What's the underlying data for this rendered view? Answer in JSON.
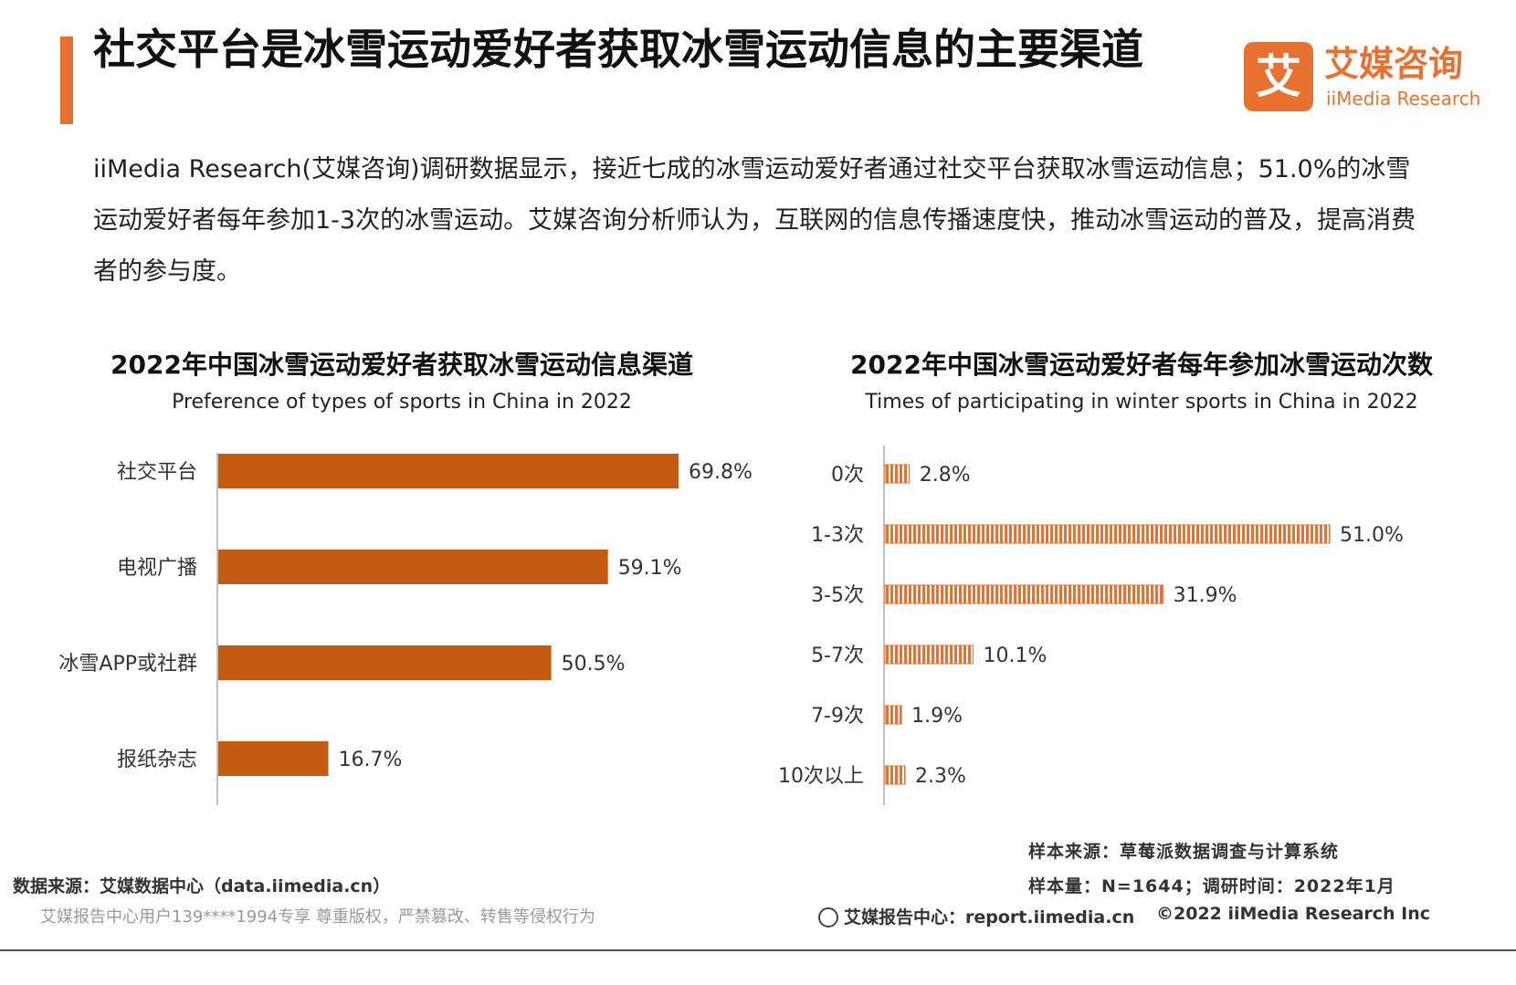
{
  "header": {
    "title": "社交平台是冰雪运动爱好者获取冰雪运动信息的主要渠道",
    "summary": "iiMedia Research(艾媒咨询)调研数据显示，接近七成的冰雪运动爱好者通过社交平台获取冰雪运动信息；51.0%的冰雪运动爱好者每年参加1-3次的冰雪运动。艾媒咨询分析师认为，互联网的信息传播速度快，推动冰雪运动的普及，提高消费者的参与度。"
  },
  "logo": {
    "mark": "艾",
    "name_cn": "艾媒咨询",
    "name_en": "iiMedia Research"
  },
  "colors": {
    "accent": "#e8712f",
    "bar_left": "#c55a11",
    "bar_right": "#e8712f",
    "axis": "#bfbfbf"
  },
  "chart_data": [
    {
      "type": "bar",
      "orientation": "horizontal",
      "title": "2022年中国冰雪运动爱好者获取冰雪运动信息渠道",
      "subtitle": "Preference of types of sports in China in 2022",
      "categories": [
        "社交平台",
        "电视广播",
        "冰雪APP或社群",
        "报纸杂志"
      ],
      "values": [
        69.8,
        59.1,
        50.5,
        16.7
      ],
      "value_labels": [
        "69.8%",
        "59.1%",
        "50.5%",
        "16.7%"
      ],
      "unit": "%",
      "xlim": [
        0,
        100
      ]
    },
    {
      "type": "bar",
      "orientation": "horizontal",
      "title": "2022年中国冰雪运动爱好者每年参加冰雪运动次数",
      "subtitle": "Times of participating in winter sports in China in 2022",
      "categories": [
        "0次",
        "1-3次",
        "3-5次",
        "5-7次",
        "7-9次",
        "10次以上"
      ],
      "values": [
        2.8,
        51.0,
        31.9,
        10.1,
        1.9,
        2.3
      ],
      "value_labels": [
        "2.8%",
        "51.0%",
        "31.9%",
        "10.1%",
        "1.9%",
        "2.3%"
      ],
      "unit": "%",
      "xlim": [
        0,
        100
      ],
      "pattern": "vertical-stripes"
    }
  ],
  "footer": {
    "sample_source": "样本来源：草莓派数据调查与计算系统",
    "sample_size": "样本量：N=1644；调研时间：2022年1月",
    "data_source": "数据来源：艾媒数据中心（data.iimedia.cn）",
    "watermark": "艾媒报告中心用户139****1994专享 尊重版权，严禁篡改、转售等侵权行为",
    "report_center": "艾媒报告中心：report.iimedia.cn",
    "copyright": "©2022  iiMedia Research  Inc"
  }
}
